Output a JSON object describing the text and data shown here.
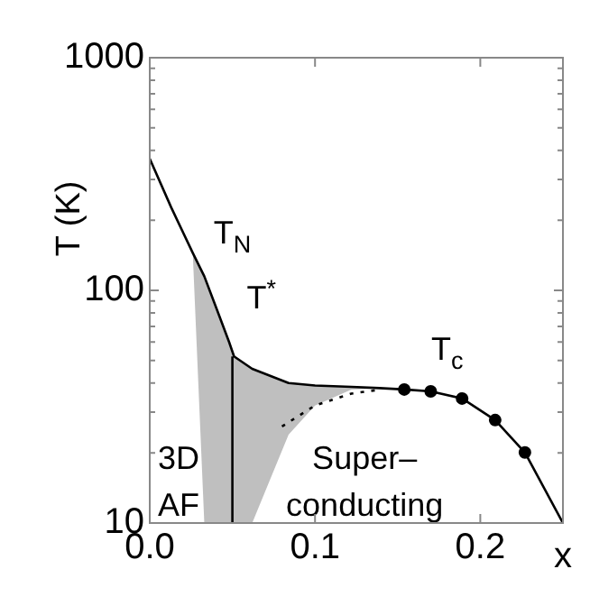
{
  "chart_data": {
    "type": "line",
    "xlabel": "x",
    "ylabel": "T (K)",
    "log": "y",
    "grid": false,
    "legend": false,
    "xlim": [
      0,
      0.25
    ],
    "xticks": [
      {
        "value": 0,
        "label": "0.0"
      },
      0.1,
      0.2
    ],
    "ylim": [
      10,
      1000
    ],
    "yticks": [
      10,
      {
        "value": 20,
        "label": null
      },
      {
        "value": 30,
        "label": null
      },
      {
        "value": 40,
        "label": null
      },
      {
        "value": 50,
        "label": null
      },
      {
        "value": 60,
        "label": null
      },
      {
        "value": 70,
        "label": null
      },
      {
        "value": 80,
        "label": null
      },
      {
        "value": 90,
        "label": null
      },
      100,
      {
        "value": 200,
        "label": null
      },
      {
        "value": 300,
        "label": null
      },
      {
        "value": 400,
        "label": null
      },
      {
        "value": 500,
        "label": null
      },
      {
        "value": 600,
        "label": null
      },
      {
        "value": 700,
        "label": null
      },
      {
        "value": 800,
        "label": null
      },
      {
        "value": 900,
        "label": null
      },
      1000
    ],
    "series": [
      {
        "color": "#000000",
        "marker": "none",
        "line_style": "solid",
        "x": [
          0,
          0.013,
          0.026,
          0.033,
          0.04,
          0.048,
          0.051,
          0.062,
          0.084,
          0.1,
          0.122,
          0.139,
          0.154,
          0.17,
          0.189,
          0.209,
          0.227,
          0.25
        ],
        "values": [
          368,
          227,
          145,
          115,
          85,
          60,
          52,
          46,
          40,
          39,
          38.5,
          38,
          37.5,
          36.8,
          34.3,
          27.7,
          20.1,
          10
        ],
        "lower": [
          null,
          null,
          145,
          10,
          10,
          10,
          10,
          10,
          24,
          32,
          37.5,
          38,
          null,
          null,
          null,
          null,
          null,
          null
        ],
        "upper": [
          null,
          null,
          145,
          115,
          85,
          60,
          52,
          46,
          40,
          39,
          38.5,
          38,
          null,
          null,
          null,
          null,
          null,
          null
        ]
      },
      {
        "color": "#000000",
        "marker": "none",
        "line_style": "dotted",
        "x": [
          0.08,
          0.1,
          0.122,
          0.14
        ],
        "values": [
          26,
          32,
          36,
          37.5
        ]
      },
      {
        "color": "#000000",
        "marker": "none",
        "line_style": "solid",
        "x": [
          0.05,
          0.05
        ],
        "values": [
          10,
          52
        ]
      },
      {
        "type": "scatter",
        "color": "#000000",
        "marker": "circle",
        "x": [
          0.154,
          0.17,
          0.189,
          0.209,
          0.227
        ],
        "values": [
          37.5,
          36.8,
          34.3,
          27.7,
          20.1
        ]
      }
    ],
    "annotations": [
      "T$_{N}$",
      "T$^{*}$",
      "T$_{c}$",
      "3D",
      "AF",
      "Super–",
      "conducting"
    ]
  }
}
